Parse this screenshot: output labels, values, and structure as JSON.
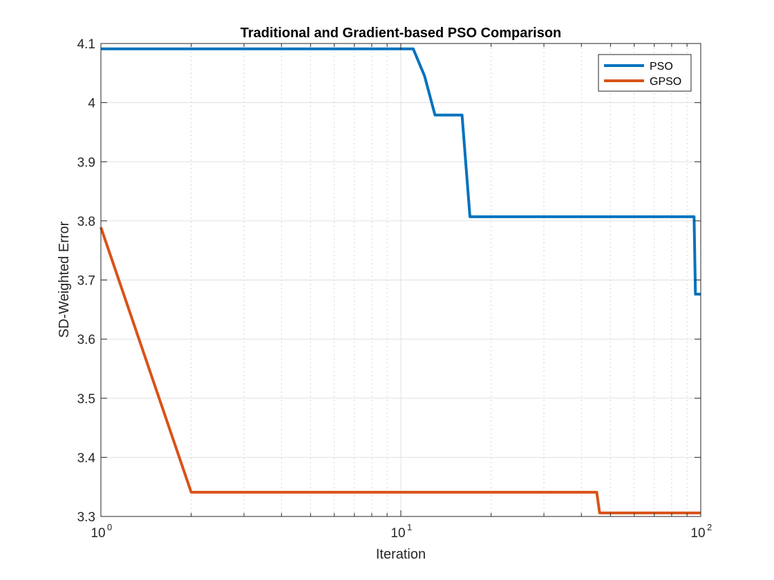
{
  "chart_data": {
    "type": "line",
    "title": "Traditional and Gradient-based PSO Comparison",
    "xlabel": "Iteration",
    "ylabel": "SD-Weighted Error",
    "x_scale": "log",
    "xlim": [
      1,
      100
    ],
    "ylim": [
      3.3,
      4.1
    ],
    "x_ticks": [
      {
        "value": 1,
        "base": "10",
        "exp": "0"
      },
      {
        "value": 10,
        "base": "10",
        "exp": "1"
      },
      {
        "value": 100,
        "base": "10",
        "exp": "2"
      }
    ],
    "y_ticks": [
      {
        "value": 3.3,
        "label": "3.3"
      },
      {
        "value": 3.4,
        "label": "3.4"
      },
      {
        "value": 3.5,
        "label": "3.5"
      },
      {
        "value": 3.6,
        "label": "3.6"
      },
      {
        "value": 3.7,
        "label": "3.7"
      },
      {
        "value": 3.8,
        "label": "3.8"
      },
      {
        "value": 3.9,
        "label": "3.9"
      },
      {
        "value": 4.0,
        "label": "4"
      },
      {
        "value": 4.1,
        "label": "4.1"
      }
    ],
    "grid": true,
    "minor_grid_x": true,
    "legend_position": "top-right",
    "series": [
      {
        "name": "PSO",
        "color": "#0072BD",
        "points": [
          [
            1,
            4.091
          ],
          [
            11,
            4.091
          ],
          [
            12,
            4.045
          ],
          [
            13,
            3.979
          ],
          [
            16,
            3.979
          ],
          [
            17,
            3.807
          ],
          [
            95,
            3.807
          ],
          [
            96,
            3.676
          ],
          [
            100,
            3.676
          ]
        ]
      },
      {
        "name": "GPSO",
        "color": "#D95319",
        "points": [
          [
            1,
            3.789
          ],
          [
            2,
            3.341
          ],
          [
            45,
            3.341
          ],
          [
            46,
            3.306
          ],
          [
            100,
            3.306
          ]
        ]
      }
    ]
  }
}
